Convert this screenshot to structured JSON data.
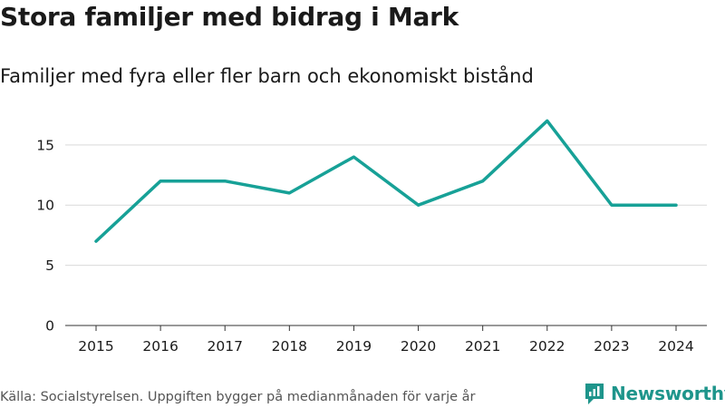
{
  "header": {
    "title": "Stora familjer med bidrag i Mark",
    "subtitle": "Familjer med fyra eller fler barn och ekonomiskt bistånd"
  },
  "footer": {
    "source": "Källa: Socialstyrelsen. Uppgiften bygger på medianmånaden för varje år",
    "brand": "Newsworthy"
  },
  "colors": {
    "line": "#17a197",
    "brand": "#1e958b",
    "grid": "#d9d9d9"
  },
  "chart_data": {
    "type": "line",
    "title": "Stora familjer med bidrag i Mark",
    "subtitle": "Familjer med fyra eller fler barn och ekonomiskt bistånd",
    "xlabel": "",
    "ylabel": "",
    "x": [
      "2015",
      "2016",
      "2017",
      "2018",
      "2019",
      "2020",
      "2021",
      "2022",
      "2023",
      "2024"
    ],
    "series": [
      {
        "name": "Familjer",
        "values": [
          7,
          12,
          12,
          11,
          14,
          10,
          12,
          17,
          10,
          10
        ]
      }
    ],
    "ylim": [
      0,
      18
    ],
    "yticks": [
      0,
      5,
      10,
      15
    ],
    "grid": true,
    "legend": "none"
  }
}
